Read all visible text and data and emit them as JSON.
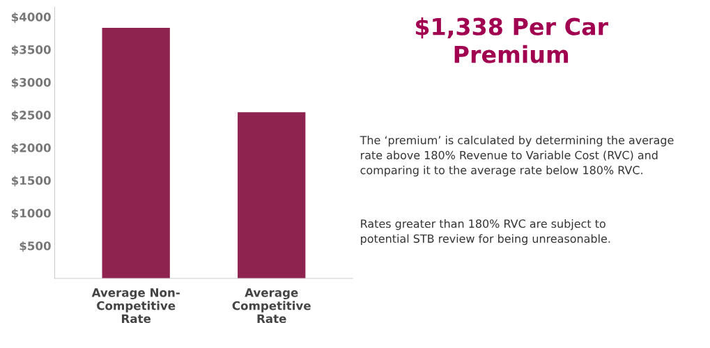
{
  "chart_data": {
    "type": "bar",
    "title": "$1,338 Per Car\nPremium",
    "categories": [
      "Average Non-\nCompetitive\nRate",
      "Average\nCompetitive\nRate"
    ],
    "values": [
      3830,
      2540
    ],
    "color": "#8e2350",
    "ylim": [
      0,
      4150
    ],
    "yticks": [
      {
        "value": 500,
        "label": "$500"
      },
      {
        "value": 1000,
        "label": "$1000"
      },
      {
        "value": 1500,
        "label": "$1500"
      },
      {
        "value": 2000,
        "label": "$2000"
      },
      {
        "value": 2500,
        "label": "$2500"
      },
      {
        "value": 3000,
        "label": "$3000"
      },
      {
        "value": 3500,
        "label": "$3500"
      },
      {
        "value": 4000,
        "label": "$4000"
      }
    ],
    "grid": false,
    "annotations": [
      "The ‘premium’ is calculated by determining the average\nrate above 180% Revenue to Variable Cost (RVC) and\ncomparing it to the average rate below 180% RVC.",
      "Rates greater than 180% RVC are subject to\npotential STB review for being unreasonable."
    ]
  }
}
